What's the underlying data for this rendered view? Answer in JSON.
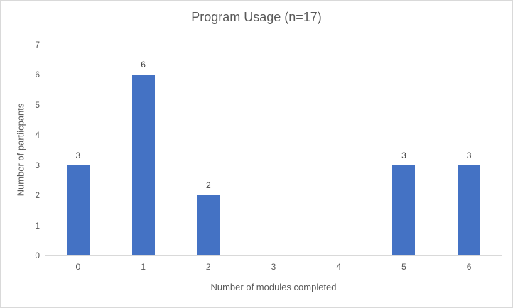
{
  "chart": {
    "title": "Program Usage (n=17)",
    "xlabel": "Number of modules completed",
    "ylabel": "Number of partiicpants"
  },
  "chart_data": {
    "type": "bar",
    "title": "Program Usage (n=17)",
    "xlabel": "Number of modules completed",
    "ylabel": "Number of partiicpants",
    "categories": [
      "0",
      "1",
      "2",
      "3",
      "4",
      "5",
      "6"
    ],
    "values": [
      3,
      6,
      2,
      0,
      0,
      3,
      3
    ],
    "data_labels": [
      "3",
      "6",
      "2",
      "",
      "",
      "3",
      "3"
    ],
    "yticks": [
      "0",
      "1",
      "2",
      "3",
      "4",
      "5",
      "6",
      "7"
    ],
    "ylim": [
      0,
      7
    ],
    "grid": false,
    "legend": "none",
    "bar_color": "#4472c4",
    "axis_line_color": "#d9d9d9",
    "axis_text_color": "#595959",
    "data_label_color": "#404040"
  }
}
